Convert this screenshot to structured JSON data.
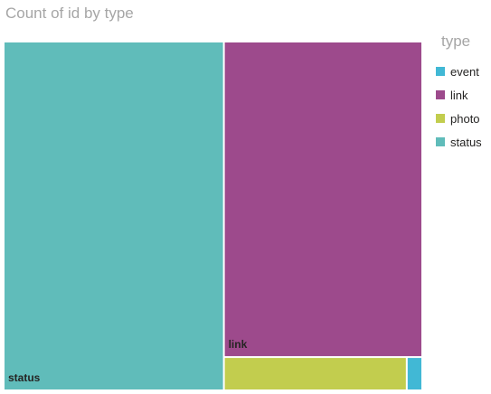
{
  "chart_data": {
    "type": "treemap",
    "title": "Count of id by type",
    "legend_title": "type",
    "legend_position": "right",
    "categories": [
      "event",
      "link",
      "photo",
      "status"
    ],
    "colors": [
      "#41b8d5",
      "#9d4a8c",
      "#c2cd4e",
      "#60bcba"
    ],
    "tiles": [
      {
        "name": "status",
        "value": 53,
        "color": "#60bcba",
        "label": "status"
      },
      {
        "name": "link",
        "value": 43,
        "color": "#9d4a8c",
        "label": "link"
      },
      {
        "name": "photo",
        "value": 4,
        "color": "#c2cd4e",
        "label": ""
      },
      {
        "name": "event",
        "value": 0.3,
        "color": "#41b8d5",
        "label": ""
      }
    ]
  }
}
